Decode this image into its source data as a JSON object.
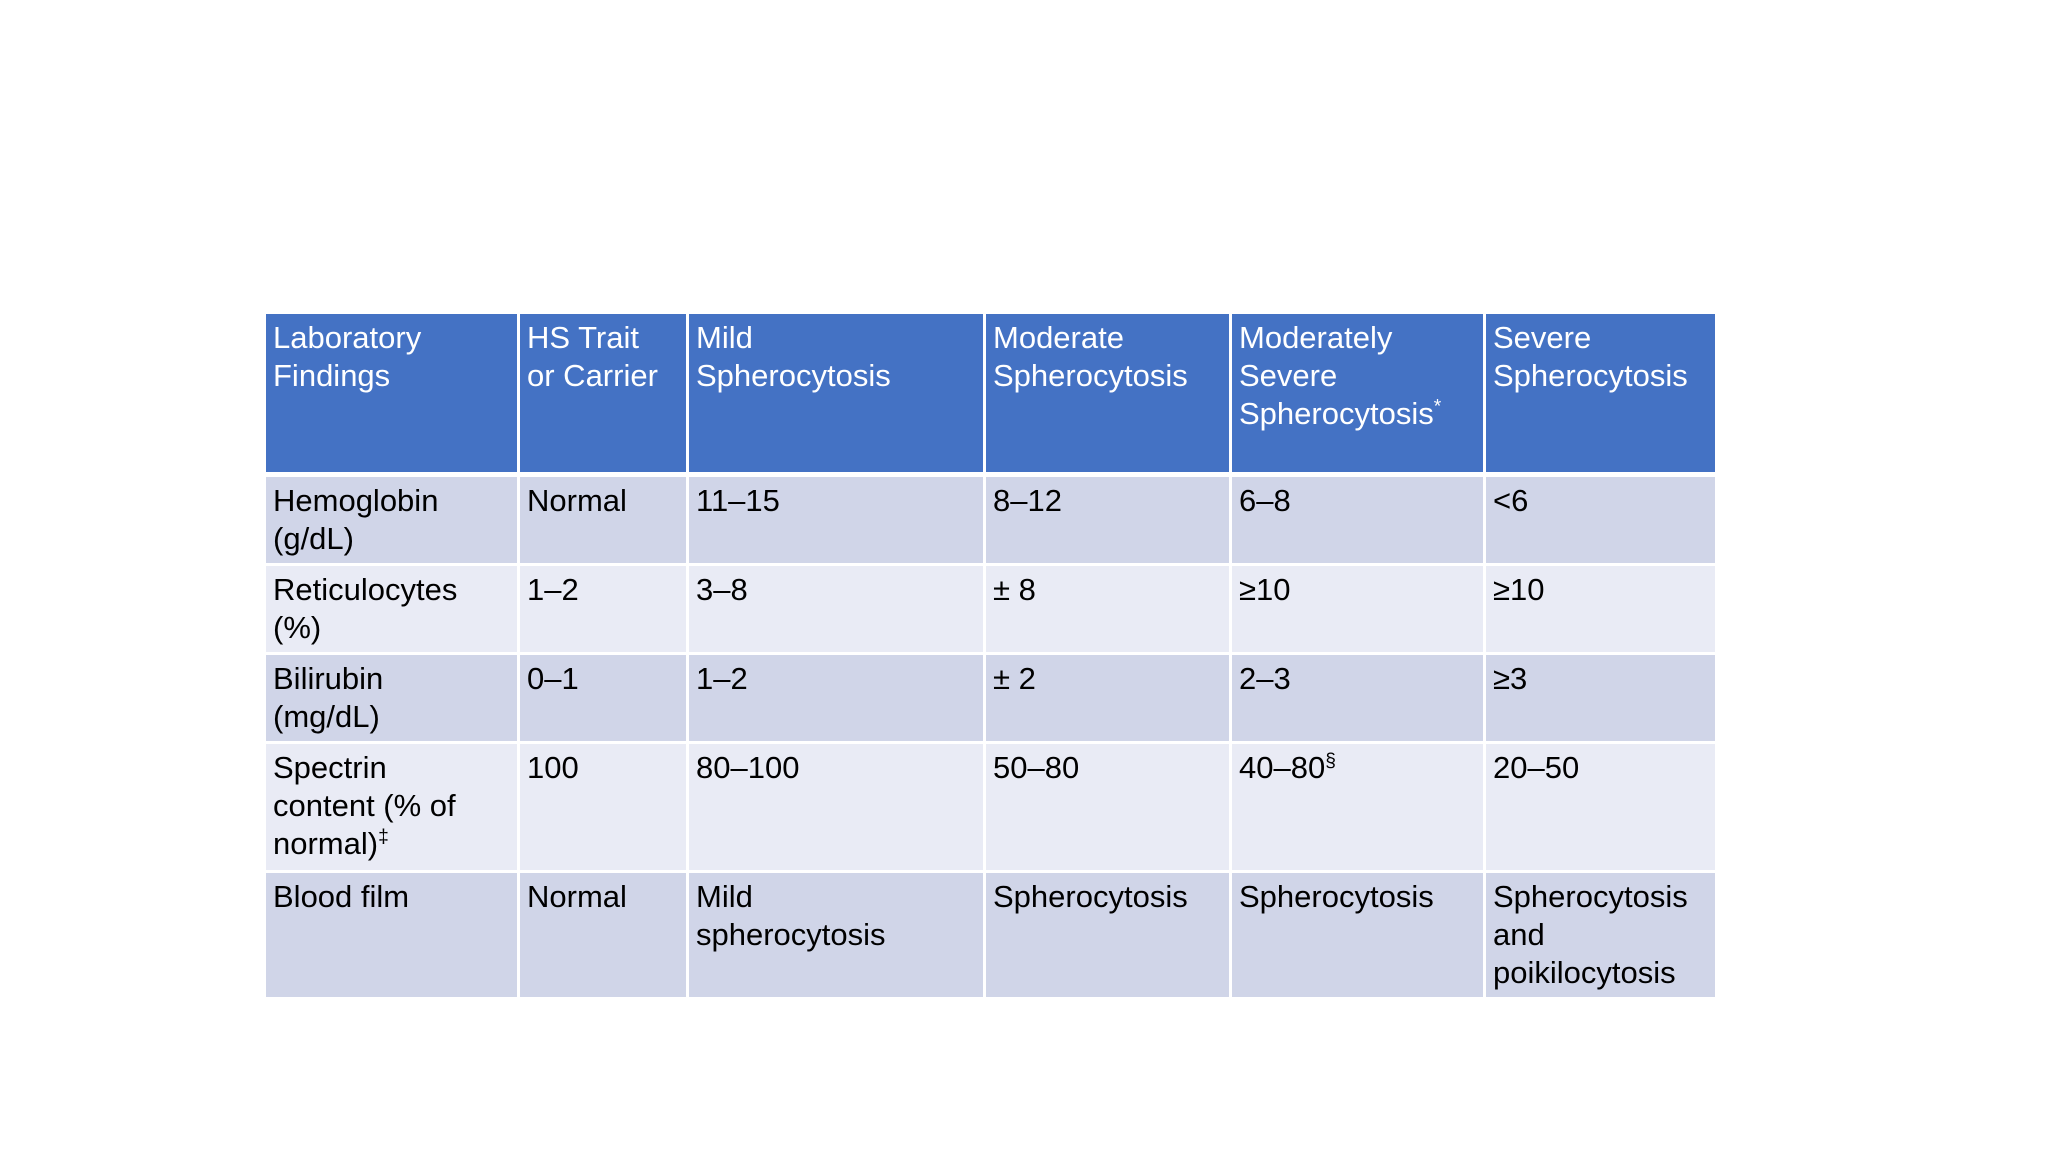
{
  "page": {
    "background": "#FFFFFF"
  },
  "table": {
    "colors": {
      "header_bg": "#4472C4",
      "header_text": "#FFFFFF",
      "row_odd_bg": "#D0D5E8",
      "row_even_bg": "#E9EBF5",
      "body_text": "#000000",
      "border": "#FFFFFF"
    },
    "columns": [
      "Laboratory\nFindings",
      "HS Trait\nor Carrier",
      "Mild\nSpherocytosis",
      "Moderate\nSpherocytosis",
      "Moderately\nSevere\nSpherocytosis*",
      "Severe\nSpherocytosis"
    ],
    "rows": [
      {
        "cells": [
          "Hemoglobin\n(g/dL)",
          "Normal",
          "11–15",
          "8–12",
          "6–8",
          "<6"
        ]
      },
      {
        "cells": [
          "Reticulocytes\n(%)",
          "1–2",
          "3–8",
          "± 8",
          "≥10",
          "≥10"
        ]
      },
      {
        "cells": [
          "Bilirubin\n(mg/dL)",
          "0–1",
          "1–2",
          "± 2",
          "2–3",
          "≥3"
        ]
      },
      {
        "cells": [
          "Spectrin\ncontent (% of\nnormal)‡",
          "100",
          "80–100",
          "50–80",
          "40–80§",
          "20–50"
        ]
      },
      {
        "cells": [
          "Blood film",
          "Normal",
          "Mild\nspherocytosis",
          "Spherocytosis",
          "Spherocytosis",
          "Spherocytosis\nand\npoikilocytosis"
        ]
      }
    ]
  }
}
